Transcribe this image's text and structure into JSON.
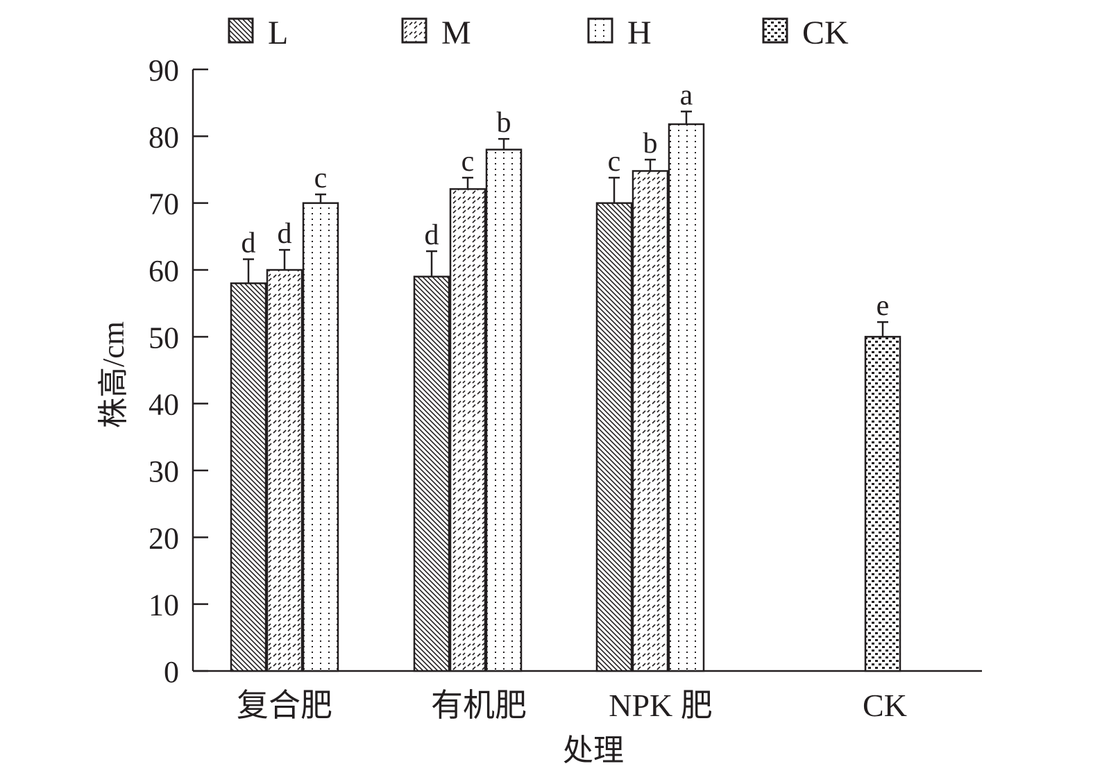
{
  "chart_data": {
    "type": "bar",
    "title": "",
    "xlabel": "处理",
    "ylabel": "株高/cm",
    "ylim": [
      0,
      90
    ],
    "yticks": [
      "0",
      "10",
      "20",
      "30",
      "40",
      "50",
      "60",
      "70",
      "80",
      "90"
    ],
    "categories": [
      "复合肥",
      "有机肥",
      "NPK 肥",
      "CK"
    ],
    "legend": {
      "placement": "top",
      "entries": [
        "L",
        "M",
        "H",
        "CK"
      ]
    },
    "series": [
      {
        "name": "L",
        "values": [
          58.0,
          59.0,
          70.0,
          null
        ],
        "errors": [
          3.6,
          3.8,
          3.8,
          null
        ],
        "letters": [
          "d",
          "d",
          "c",
          null
        ]
      },
      {
        "name": "M",
        "values": [
          60.0,
          72.1,
          74.8,
          null
        ],
        "errors": [
          3.0,
          1.7,
          1.7,
          null
        ],
        "letters": [
          "d",
          "c",
          "b",
          null
        ]
      },
      {
        "name": "H",
        "values": [
          70.0,
          78.0,
          81.8,
          null
        ],
        "errors": [
          1.3,
          1.6,
          1.9,
          null
        ],
        "letters": [
          "c",
          "b",
          "a",
          null
        ]
      },
      {
        "name": "CK",
        "values": [
          null,
          null,
          null,
          50.0
        ],
        "errors": [
          null,
          null,
          null,
          2.2
        ],
        "letters": [
          null,
          null,
          null,
          "e"
        ]
      }
    ],
    "grid": false
  }
}
